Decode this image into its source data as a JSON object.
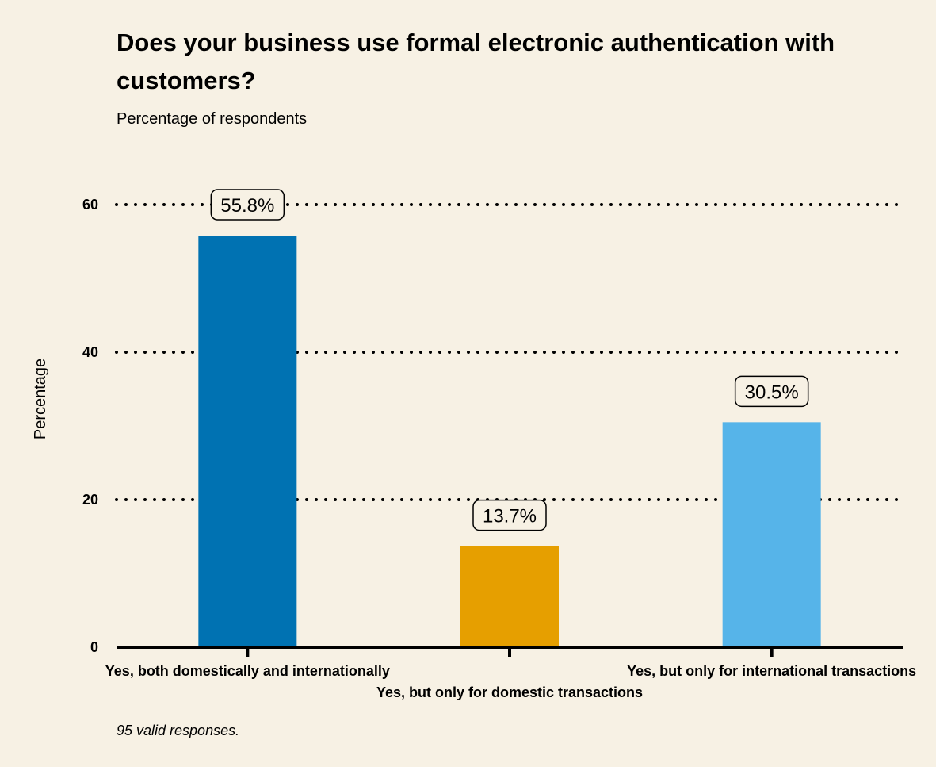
{
  "chart_data": {
    "type": "bar",
    "title": "Does your business use formal electronic authentication with customers?",
    "subtitle": "Percentage of respondents",
    "ylabel": "Percentage",
    "xlabel": "",
    "ylim": [
      0,
      60
    ],
    "yticks": [
      0,
      20,
      40,
      60
    ],
    "grid": "dotted horizontal",
    "categories": [
      "Yes, both domestically and internationally",
      "Yes, but only for domestic transactions",
      "Yes, but only for international transactions"
    ],
    "values": [
      55.8,
      13.7,
      30.5
    ],
    "value_labels": [
      "55.8%",
      "13.7%",
      "30.5%"
    ],
    "colors": [
      "#0072b2",
      "#e69f00",
      "#56b4e9"
    ],
    "caption": "95 valid responses."
  }
}
